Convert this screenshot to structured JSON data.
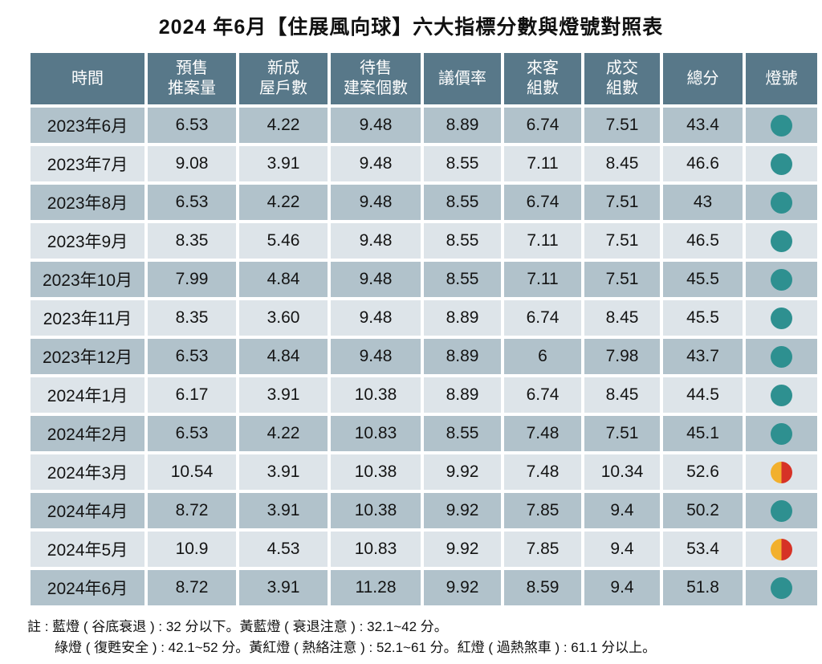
{
  "title": "2024 年6月【住展風向球】六大指標分數與燈號對照表",
  "colors": {
    "header_bg": "#587889",
    "row_dark": "#b1c2cb",
    "row_light": "#dde4e9",
    "light_green": "#2e9090",
    "light_yellow": "#f2b02d",
    "light_red": "#d63226"
  },
  "notes": [
    "註 : 藍燈 ( 谷底衰退 ) : 32 分以下。黃藍燈 ( 衰退注意 ) : 32.1~42 分。",
    "綠燈 ( 復甦安全 ) : 42.1~52 分。黃紅燈 ( 熱絡注意 ) : 52.1~61 分。紅燈 ( 過熱煞車 ) : 61.1 分以上。"
  ],
  "chart_data": {
    "type": "table",
    "title": "2024 年6月【住展風向球】六大指標分數與燈號對照表",
    "columns": [
      "時間",
      "預售\n推案量",
      "新成\n屋戶數",
      "待售\n建案個數",
      "議價率",
      "來客\n組數",
      "成交\n組數",
      "總分",
      "燈號"
    ],
    "rows": [
      {
        "month": "2023年6月",
        "values": [
          "6.53",
          "4.22",
          "9.48",
          "8.89",
          "6.74",
          "7.51",
          "43.4"
        ],
        "light": "green"
      },
      {
        "month": "2023年7月",
        "values": [
          "9.08",
          "3.91",
          "9.48",
          "8.55",
          "7.11",
          "8.45",
          "46.6"
        ],
        "light": "green"
      },
      {
        "month": "2023年8月",
        "values": [
          "6.53",
          "4.22",
          "9.48",
          "8.55",
          "6.74",
          "7.51",
          "43"
        ],
        "light": "green"
      },
      {
        "month": "2023年9月",
        "values": [
          "8.35",
          "5.46",
          "9.48",
          "8.55",
          "7.11",
          "7.51",
          "46.5"
        ],
        "light": "green"
      },
      {
        "month": "2023年10月",
        "values": [
          "7.99",
          "4.84",
          "9.48",
          "8.55",
          "7.11",
          "7.51",
          "45.5"
        ],
        "light": "green"
      },
      {
        "month": "2023年11月",
        "values": [
          "8.35",
          "3.60",
          "9.48",
          "8.89",
          "6.74",
          "8.45",
          "45.5"
        ],
        "light": "green"
      },
      {
        "month": "2023年12月",
        "values": [
          "6.53",
          "4.84",
          "9.48",
          "8.89",
          "6",
          "7.98",
          "43.7"
        ],
        "light": "green"
      },
      {
        "month": "2024年1月",
        "values": [
          "6.17",
          "3.91",
          "10.38",
          "8.89",
          "6.74",
          "8.45",
          "44.5"
        ],
        "light": "green"
      },
      {
        "month": "2024年2月",
        "values": [
          "6.53",
          "4.22",
          "10.83",
          "8.55",
          "7.48",
          "7.51",
          "45.1"
        ],
        "light": "green"
      },
      {
        "month": "2024年3月",
        "values": [
          "10.54",
          "3.91",
          "10.38",
          "9.92",
          "7.48",
          "10.34",
          "52.6"
        ],
        "light": "yellow-red"
      },
      {
        "month": "2024年4月",
        "values": [
          "8.72",
          "3.91",
          "10.38",
          "9.92",
          "7.85",
          "9.4",
          "50.2"
        ],
        "light": "green"
      },
      {
        "month": "2024年5月",
        "values": [
          "10.9",
          "4.53",
          "10.83",
          "9.92",
          "7.85",
          "9.4",
          "53.4"
        ],
        "light": "yellow-red"
      },
      {
        "month": "2024年6月",
        "values": [
          "8.72",
          "3.91",
          "11.28",
          "9.92",
          "8.59",
          "9.4",
          "51.8"
        ],
        "light": "green"
      }
    ],
    "legend": {
      "green": "綠燈 ( 復甦安全 ) : 42.1~52 分",
      "yellow-red": "黃紅燈 ( 熱絡注意 ) : 52.1~61 分"
    }
  }
}
